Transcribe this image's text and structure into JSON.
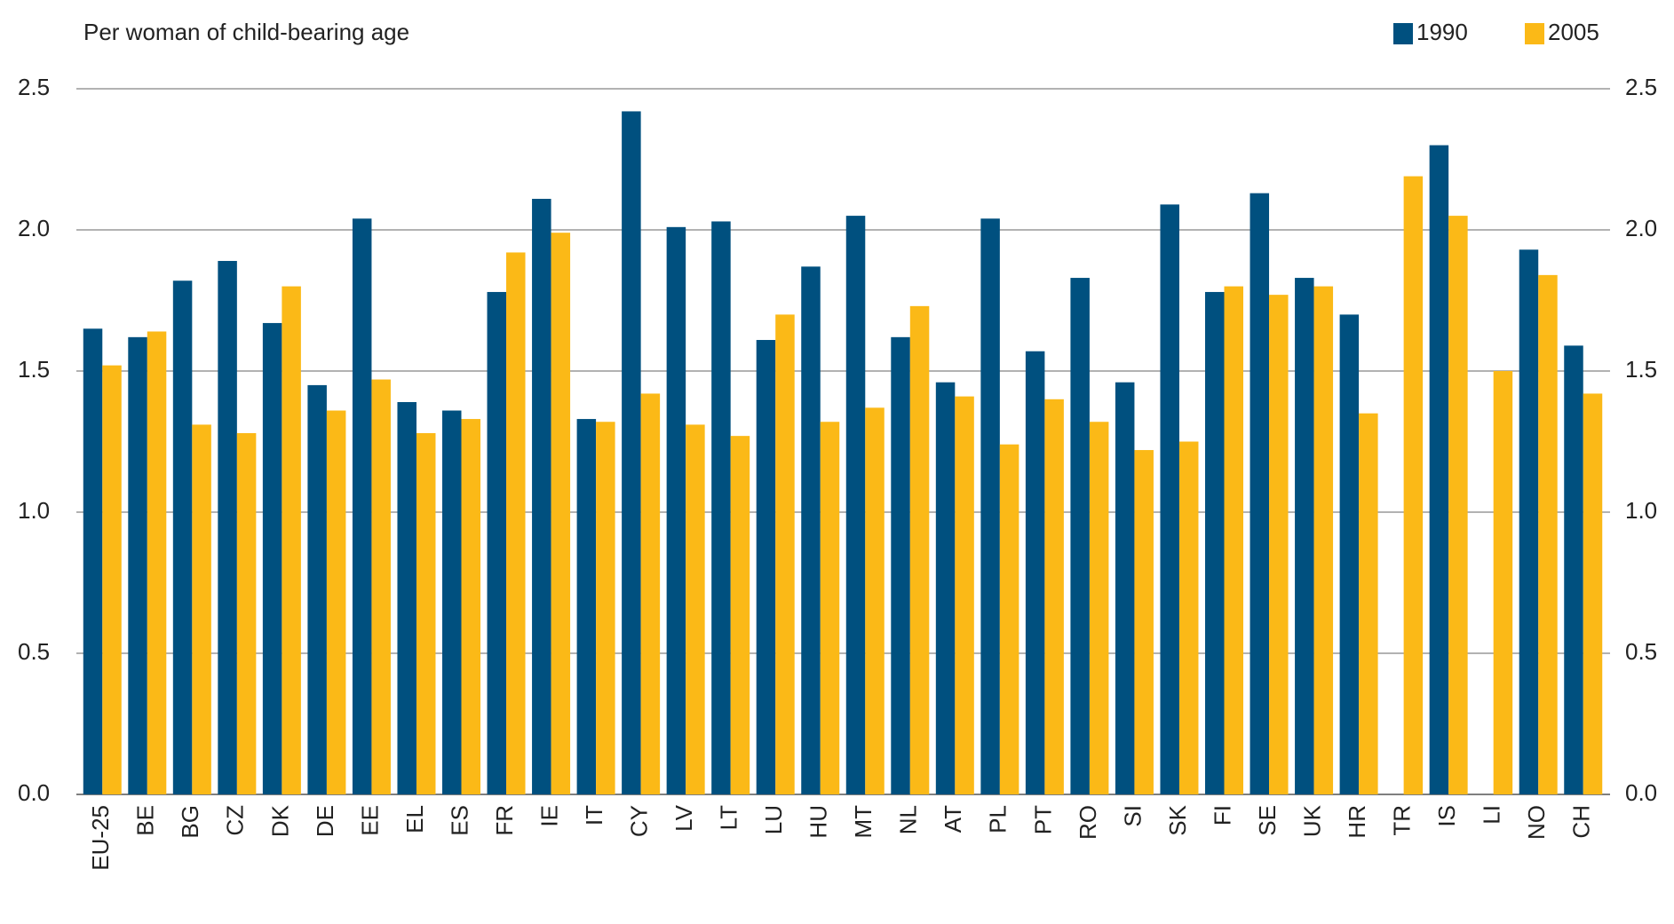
{
  "chart_data": {
    "type": "bar",
    "title": "Per woman of child-bearing age",
    "categories": [
      "EU-25",
      "BE",
      "BG",
      "CZ",
      "DK",
      "DE",
      "EE",
      "EL",
      "ES",
      "FR",
      "IE",
      "IT",
      "CY",
      "LV",
      "LT",
      "LU",
      "HU",
      "MT",
      "NL",
      "AT",
      "PL",
      "PT",
      "RO",
      "SI",
      "SK",
      "FI",
      "SE",
      "UK",
      "HR",
      "TR",
      "IS",
      "LI",
      "NO",
      "CH"
    ],
    "series": [
      {
        "name": "1990",
        "color": "#00507f",
        "values": [
          1.65,
          1.62,
          1.82,
          1.89,
          1.67,
          1.45,
          2.04,
          1.39,
          1.36,
          1.78,
          2.11,
          1.33,
          2.42,
          2.01,
          2.03,
          1.61,
          1.87,
          2.05,
          1.62,
          1.46,
          2.04,
          1.57,
          1.83,
          1.46,
          2.09,
          1.78,
          2.13,
          1.83,
          1.7,
          null,
          2.3,
          null,
          1.93,
          1.59
        ]
      },
      {
        "name": "2005",
        "color": "#fbb917",
        "values": [
          1.52,
          1.64,
          1.31,
          1.28,
          1.8,
          1.36,
          1.47,
          1.28,
          1.33,
          1.92,
          1.99,
          1.32,
          1.42,
          1.31,
          1.27,
          1.7,
          1.32,
          1.37,
          1.73,
          1.41,
          1.24,
          1.4,
          1.32,
          1.22,
          1.25,
          1.8,
          1.77,
          1.8,
          1.35,
          2.19,
          2.05,
          1.5,
          1.84,
          1.42
        ]
      }
    ],
    "ylim": [
      0,
      2.5
    ],
    "yticks": [
      {
        "value": 0,
        "label": "0.0"
      },
      0.5,
      {
        "value": 1,
        "label": "1.0"
      },
      1.5,
      {
        "value": 2,
        "label": "2.0"
      },
      2.5
    ],
    "grid": true,
    "legend": "top-right"
  }
}
